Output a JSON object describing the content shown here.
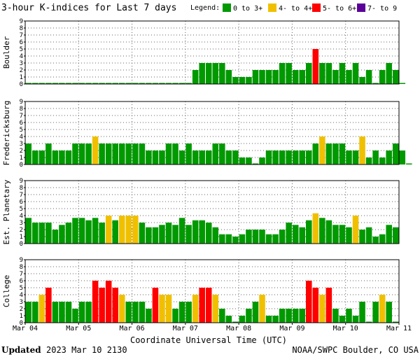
{
  "chart_data": {
    "type": "bar",
    "title": "3-hour K-indices for Last 7 days",
    "legend_title": "Legend:",
    "legend_placement": "top-right",
    "legend": [
      {
        "label": "0 to 3+",
        "color": "#009900"
      },
      {
        "label": "4- to 4+",
        "color": "#f0c000"
      },
      {
        "label": "5- to 6+",
        "color": "#ff0000"
      },
      {
        "label": "7- to 9",
        "color": "#5a0099"
      }
    ],
    "xlabel": "Coordinate Universal Time (UTC)",
    "x_tick_labels": [
      "Mar 04",
      "Mar 05",
      "Mar 06",
      "Mar 07",
      "Mar 08",
      "Mar 09",
      "Mar 10",
      "Mar 11"
    ],
    "yticks": [
      "0",
      "1",
      "2",
      "3",
      "4",
      "5",
      "6",
      "7",
      "8",
      "9"
    ],
    "ylim": [
      0,
      9
    ],
    "bars_per_day": 8,
    "grid": true,
    "panels": [
      {
        "name": "Boulder",
        "values": [
          0,
          0,
          0,
          0,
          0,
          0,
          0,
          0,
          0,
          0,
          0,
          0,
          0,
          0,
          0,
          0,
          0,
          0,
          0,
          0,
          0,
          0,
          0,
          0,
          0,
          2,
          3,
          3,
          3,
          3,
          2,
          1,
          1,
          1,
          2,
          2,
          2,
          2,
          3,
          3,
          2,
          2,
          3,
          5,
          3,
          3,
          2,
          3,
          2,
          3,
          1,
          2,
          0,
          2,
          3,
          2,
          0
        ]
      },
      {
        "name": "Fredericksburg",
        "values": [
          3,
          2,
          2,
          3,
          2,
          2,
          2,
          3,
          3,
          3,
          4,
          3,
          3,
          3,
          3,
          3,
          3,
          3,
          2,
          2,
          2,
          3,
          3,
          2,
          3,
          2,
          2,
          2,
          3,
          3,
          2,
          2,
          1,
          1,
          0,
          1,
          2,
          2,
          2,
          2,
          2,
          2,
          2,
          3,
          4,
          3,
          3,
          3,
          2,
          2,
          4,
          1,
          2,
          1,
          2,
          3,
          2,
          0
        ]
      },
      {
        "name": "Est. Planetary",
        "values": [
          3.67,
          3,
          3,
          3,
          2,
          2.67,
          3,
          3.67,
          3.67,
          3.33,
          3.67,
          3,
          4,
          3.33,
          4,
          4,
          4,
          3,
          2.33,
          2.33,
          2.67,
          3,
          2.67,
          3.67,
          2.67,
          3.33,
          3.33,
          3,
          2.33,
          1.33,
          1.33,
          1,
          1.33,
          2,
          2,
          2,
          1.33,
          1.33,
          2,
          3,
          2.67,
          2.33,
          3.33,
          4.33,
          3.67,
          3.33,
          2.67,
          2.67,
          2.33,
          4,
          2,
          2.33,
          1,
          1.33,
          2.67,
          2.33
        ]
      },
      {
        "name": "College",
        "values": [
          3,
          3,
          4,
          5,
          3,
          3,
          3,
          2,
          3,
          3,
          6,
          5,
          6,
          5,
          4,
          3,
          3,
          3,
          2,
          5,
          4,
          4,
          2,
          3,
          3,
          4,
          5,
          5,
          4,
          2,
          1,
          0,
          1,
          2,
          3,
          4,
          1,
          1,
          2,
          2,
          2,
          2,
          6,
          5,
          4,
          5,
          2,
          1,
          2,
          1,
          3,
          0,
          3,
          4,
          3,
          0
        ]
      }
    ]
  },
  "footer": {
    "updated_label": "Updated",
    "updated_value": "2023 Mar 10 2130",
    "source": "NOAA/SWPC Boulder, CO USA"
  }
}
